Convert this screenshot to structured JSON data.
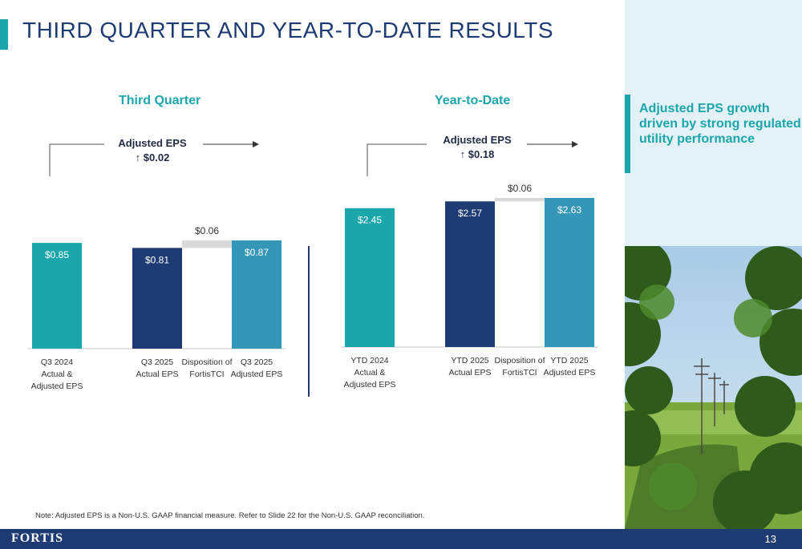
{
  "title": "THIRD QUARTER AND YEAR-TO-DATE RESULTS",
  "note": "Note: Adjusted EPS is a Non-U.S. GAAP financial measure. Refer to Slide 22 for the Non-U.S. GAAP reconciliation.",
  "side_message": "Adjusted EPS growth driven by strong regulated utility performance",
  "footer": {
    "logo": "FORTIS",
    "page": "13"
  },
  "colors": {
    "teal": "#1aa6ab",
    "navy": "#1f3b74",
    "steel": "#3497b8",
    "grey": "#d9d9d9"
  },
  "panels": [
    {
      "title": "Third Quarter",
      "eps_label": "Adjusted EPS",
      "eps_change": "↑ $0.02"
    },
    {
      "title": "Year-to-Date",
      "eps_label": "Adjusted EPS",
      "eps_change": "↑ $0.18"
    }
  ],
  "chart_data": [
    {
      "type": "bar",
      "subtype": "waterfall",
      "title": "Third Quarter",
      "categories": [
        "Q3 2024\nActual &\nAdjusted EPS",
        "Q3 2025\nActual EPS",
        "Disposition of\nFortisTCI",
        "Q3 2025\nAdjusted EPS"
      ],
      "values": [
        0.85,
        0.81,
        0.06,
        0.87
      ],
      "bases": [
        0,
        0,
        0.81,
        0
      ],
      "labels": [
        "$0.85",
        "$0.81",
        "$0.06",
        "$0.87"
      ],
      "colors": [
        "#1aa6ab",
        "#1f3b74",
        "#d9d9d9",
        "#3497b8"
      ],
      "ylim": [
        0,
        1.0
      ]
    },
    {
      "type": "bar",
      "subtype": "waterfall",
      "title": "Year-to-Date",
      "categories": [
        "YTD 2024\nActual &\nAdjusted EPS",
        "YTD 2025\nActual EPS",
        "Disposition of\nFortisTCI",
        "YTD 2025\nAdjusted EPS"
      ],
      "values": [
        2.45,
        2.57,
        0.06,
        2.63
      ],
      "bases": [
        0,
        0,
        2.57,
        0
      ],
      "labels": [
        "$2.45",
        "$2.57",
        "$0.06",
        "$2.63"
      ],
      "colors": [
        "#1aa6ab",
        "#1f3b74",
        "#d9d9d9",
        "#3497b8"
      ],
      "ylim": [
        0,
        2.65
      ]
    }
  ]
}
